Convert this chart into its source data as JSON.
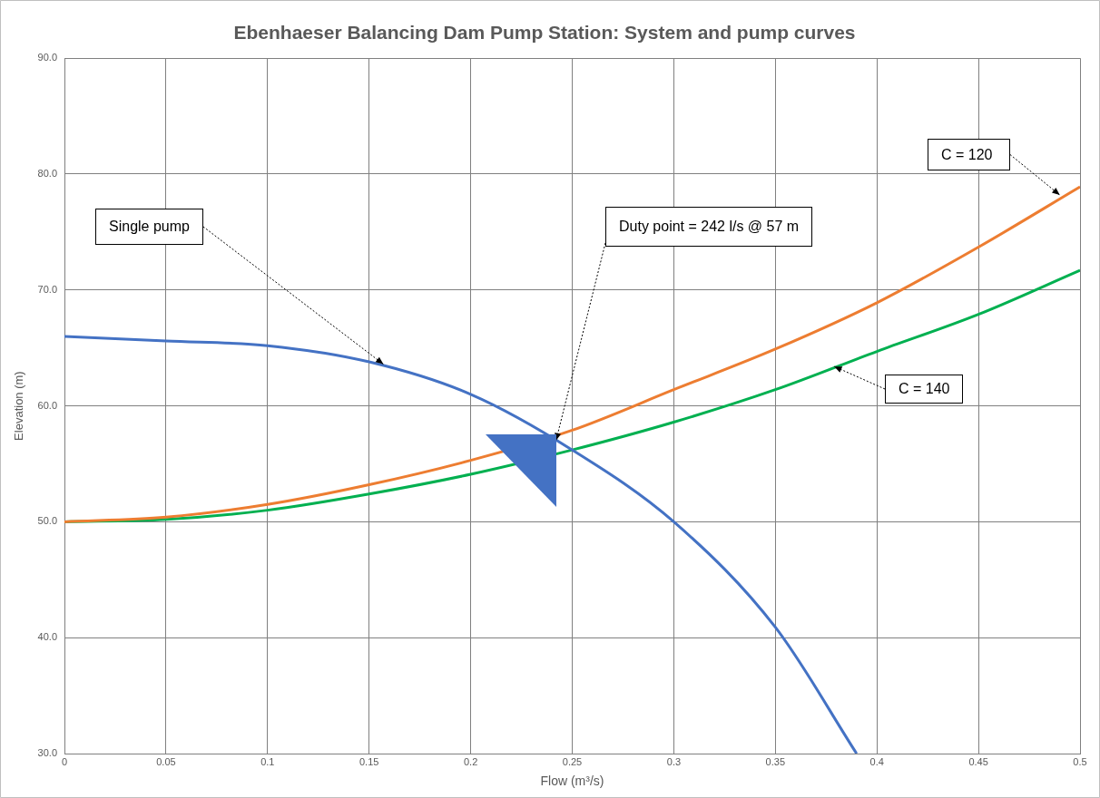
{
  "chart_data": {
    "type": "line",
    "title": "Ebenhaeser Balancing Dam Pump Station: System and pump curves",
    "xlabel": "Flow (m³/s)",
    "ylabel": "Elevation (m)",
    "xlim": [
      0,
      0.5
    ],
    "xticks": [
      0,
      0.05,
      0.1,
      0.15,
      0.2,
      0.25,
      0.3,
      0.35,
      0.4,
      0.45,
      0.5
    ],
    "ylim": [
      30,
      90
    ],
    "yticks": [
      {
        "value": 30,
        "label": "30.0"
      },
      {
        "value": 40,
        "label": "40.0"
      },
      {
        "value": 50,
        "label": "50.0"
      },
      {
        "value": 60,
        "label": "60.0"
      },
      {
        "value": 70,
        "label": "70.0"
      },
      {
        "value": 80,
        "label": "80.0"
      },
      {
        "value": 90,
        "label": "90.0"
      }
    ],
    "grid": true,
    "legend": false,
    "marker": "none",
    "line_style": "solid",
    "series": [
      {
        "color": "#4472c4",
        "x": [
          0,
          0.05,
          0.1,
          0.15,
          0.2,
          0.25,
          0.3,
          0.35,
          0.39
        ],
        "values": [
          66.0,
          65.6,
          65.2,
          63.8,
          61.0,
          56.2,
          50.0,
          40.9,
          30.0
        ]
      },
      {
        "color": "#ed7d31",
        "x": [
          0,
          0.05,
          0.1,
          0.15,
          0.2,
          0.25,
          0.3,
          0.35,
          0.4,
          0.45,
          0.5
        ],
        "values": [
          50.0,
          50.4,
          51.5,
          53.2,
          55.3,
          57.9,
          61.4,
          64.9,
          68.9,
          73.7,
          78.9
        ]
      },
      {
        "color": "#00b050",
        "x": [
          0,
          0.05,
          0.1,
          0.15,
          0.2,
          0.25,
          0.3,
          0.35,
          0.4,
          0.45,
          0.5
        ],
        "values": [
          50.0,
          50.2,
          51.0,
          52.4,
          54.1,
          56.2,
          58.6,
          61.4,
          64.7,
          67.9,
          71.7
        ]
      }
    ],
    "annotations": [
      {
        "text": "Single pump",
        "x": 0.157,
        "y": 63.6
      },
      {
        "text": "Duty point = 242 l/s @ 57 m",
        "x": 0.242,
        "y": 57
      },
      {
        "text": "C = 120",
        "x": 0.49,
        "y": 78.2
      },
      {
        "text": "C = 140",
        "x": 0.379,
        "y": 63.4
      }
    ]
  }
}
